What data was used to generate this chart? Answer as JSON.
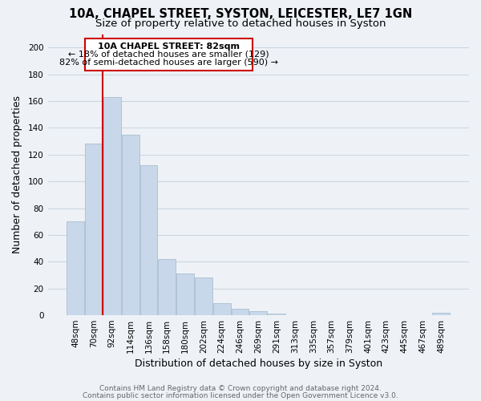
{
  "title": "10A, CHAPEL STREET, SYSTON, LEICESTER, LE7 1GN",
  "subtitle": "Size of property relative to detached houses in Syston",
  "xlabel": "Distribution of detached houses by size in Syston",
  "ylabel": "Number of detached properties",
  "bar_color": "#c8d8ea",
  "bar_edge_color": "#a8bece",
  "highlight_line_color": "#cc0000",
  "background_color": "#eef2f7",
  "plot_bg_color": "#eef2f7",
  "categories": [
    "48sqm",
    "70sqm",
    "92sqm",
    "114sqm",
    "136sqm",
    "158sqm",
    "180sqm",
    "202sqm",
    "224sqm",
    "246sqm",
    "269sqm",
    "291sqm",
    "313sqm",
    "335sqm",
    "357sqm",
    "379sqm",
    "401sqm",
    "423sqm",
    "445sqm",
    "467sqm",
    "489sqm"
  ],
  "values": [
    70,
    128,
    163,
    135,
    112,
    42,
    31,
    28,
    9,
    5,
    3,
    1,
    0,
    0,
    0,
    0,
    0,
    0,
    0,
    0,
    2
  ],
  "ylim": [
    0,
    210
  ],
  "yticks": [
    0,
    20,
    40,
    60,
    80,
    100,
    120,
    140,
    160,
    180,
    200
  ],
  "annotation_title": "10A CHAPEL STREET: 82sqm",
  "annotation_line1": "← 18% of detached houses are smaller (129)",
  "annotation_line2": "82% of semi-detached houses are larger (590) →",
  "footer_line1": "Contains HM Land Registry data © Crown copyright and database right 2024.",
  "footer_line2": "Contains public sector information licensed under the Open Government Licence v3.0.",
  "grid_color": "#ccd6e0",
  "title_fontsize": 10.5,
  "subtitle_fontsize": 9.5,
  "axis_label_fontsize": 9,
  "tick_fontsize": 7.5,
  "annot_fontsize": 8.0,
  "footer_fontsize": 6.5
}
